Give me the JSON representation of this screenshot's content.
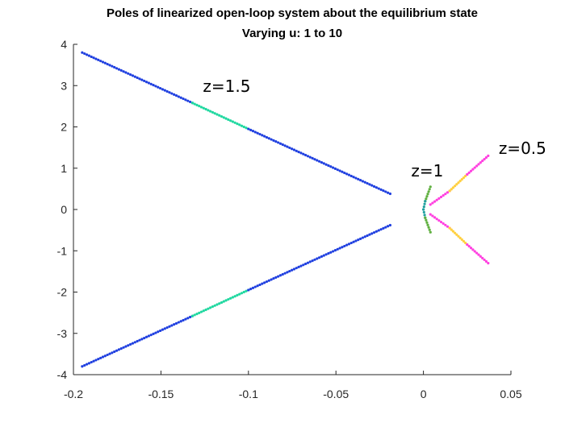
{
  "chart_data": {
    "type": "scatter",
    "title": "Poles of linearized open-loop system about the equilibrium state",
    "subtitle": "Varying u: 1 to 10",
    "xlabel": "",
    "ylabel": "",
    "xlim": [
      -0.2,
      0.05
    ],
    "ylim": [
      -4,
      4
    ],
    "xticks": [
      "-0.2",
      "-0.15",
      "-0.1",
      "-0.05",
      "0",
      "0.05"
    ],
    "yticks": [
      "4",
      "3",
      "2",
      "1",
      "0",
      "-1",
      "-2",
      "-3",
      "-4"
    ],
    "grid": false,
    "annotations": [
      {
        "text": "z=1.5",
        "x": -0.126,
        "y": 2.85
      },
      {
        "text": "z=1",
        "x": -0.007,
        "y": 0.8
      },
      {
        "text": "z=0.5",
        "x": 0.043,
        "y": 1.35
      }
    ],
    "series": [
      {
        "segments": [
          {
            "from": [
              -0.195,
              3.8
            ],
            "to": [
              -0.132,
              2.58
            ],
            "color": "#2040e0"
          },
          {
            "from": [
              -0.132,
              2.58
            ],
            "to": [
              -0.1,
              1.95
            ],
            "color": "#20d8a0"
          },
          {
            "from": [
              -0.1,
              1.95
            ],
            "to": [
              -0.019,
              0.38
            ],
            "color": "#2040e0"
          }
        ]
      },
      {
        "segments": [
          {
            "from": [
              -0.195,
              -3.8
            ],
            "to": [
              -0.132,
              -2.58
            ],
            "color": "#2040e0"
          },
          {
            "from": [
              -0.132,
              -2.58
            ],
            "to": [
              -0.1,
              -1.95
            ],
            "color": "#20d8a0"
          },
          {
            "from": [
              -0.1,
              -1.95
            ],
            "to": [
              -0.019,
              -0.38
            ],
            "color": "#2040e0"
          }
        ]
      },
      {
        "segments": [
          {
            "from": [
              0.004,
              0.55
            ],
            "to": [
              0.001,
              0.2
            ],
            "color": "#60b040"
          },
          {
            "from": [
              0.001,
              0.2
            ],
            "to": [
              0.0,
              0.0
            ],
            "color": "#20a0a0"
          },
          {
            "from": [
              0.0,
              0.0
            ],
            "to": [
              0.001,
              -0.2
            ],
            "color": "#20a0a0"
          },
          {
            "from": [
              0.001,
              -0.2
            ],
            "to": [
              0.004,
              -0.55
            ],
            "color": "#60b040"
          }
        ]
      },
      {
        "segments": [
          {
            "from": [
              0.004,
              0.12
            ],
            "to": [
              0.015,
              0.45
            ],
            "color": "#ff40e0"
          },
          {
            "from": [
              0.015,
              0.45
            ],
            "to": [
              0.025,
              0.85
            ],
            "color": "#ffd040"
          },
          {
            "from": [
              0.025,
              0.85
            ],
            "to": [
              0.037,
              1.3
            ],
            "color": "#ff40e0"
          }
        ]
      },
      {
        "segments": [
          {
            "from": [
              0.004,
              -0.12
            ],
            "to": [
              0.015,
              -0.45
            ],
            "color": "#ff40e0"
          },
          {
            "from": [
              0.015,
              -0.45
            ],
            "to": [
              0.025,
              -0.85
            ],
            "color": "#ffd040"
          },
          {
            "from": [
              0.025,
              -0.85
            ],
            "to": [
              0.037,
              -1.3
            ],
            "color": "#ff40e0"
          }
        ]
      }
    ]
  }
}
